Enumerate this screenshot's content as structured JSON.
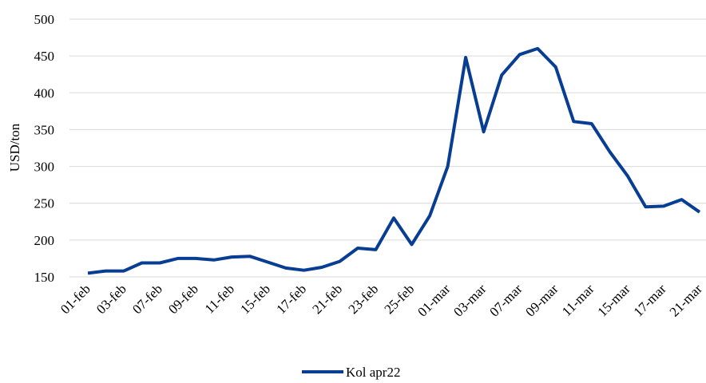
{
  "chart_data": {
    "type": "line",
    "y_label": "USD/ton",
    "categories": [
      "01-feb",
      null,
      "03-feb",
      null,
      "07-feb",
      null,
      "09-feb",
      null,
      "11-feb",
      null,
      "15-feb",
      null,
      "17-feb",
      null,
      "21-feb",
      null,
      "23-feb",
      null,
      "25-feb",
      null,
      "01-mar",
      null,
      "03-mar",
      null,
      "07-mar",
      null,
      "09-mar",
      null,
      "11-mar",
      null,
      "15-mar",
      null,
      "17-mar",
      null,
      "21-mar"
    ],
    "series": [
      {
        "name": "Kol apr22",
        "color": "#073d93",
        "values": [
          155,
          158,
          158,
          169,
          169,
          175,
          175,
          173,
          177,
          178,
          170,
          162,
          159,
          163,
          171,
          189,
          187,
          230,
          194,
          233,
          300,
          448,
          347,
          424,
          452,
          460,
          435,
          361,
          358,
          320,
          287,
          245,
          246,
          255,
          238
        ]
      }
    ],
    "ylim": [
      150,
      500
    ],
    "yticks": [
      150,
      200,
      250,
      300,
      350,
      400,
      450,
      500
    ],
    "grid": true,
    "legend": "bottom"
  }
}
